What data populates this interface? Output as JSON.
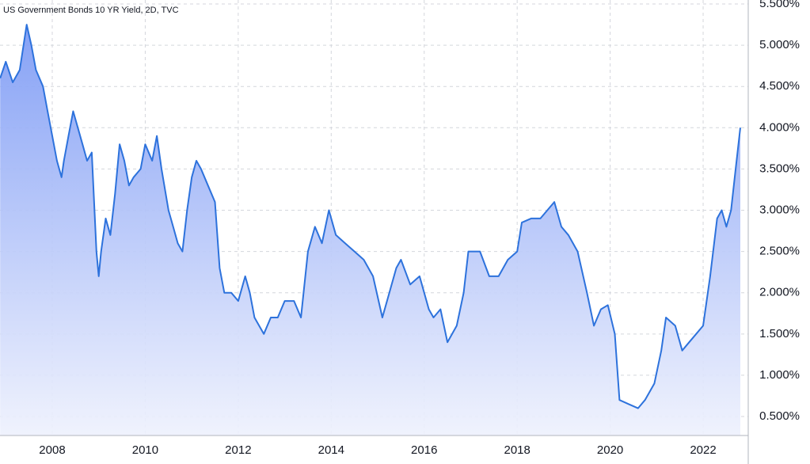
{
  "chart_data": {
    "type": "area",
    "title": "US Government Bonds 10 YR Yield, 2D, TVC",
    "color": "#2d72dc",
    "x": [
      2006.88,
      2007.0,
      2007.15,
      2007.3,
      2007.45,
      2007.55,
      2007.65,
      2007.8,
      2007.9,
      2008.0,
      2008.1,
      2008.2,
      2008.25,
      2008.35,
      2008.45,
      2008.55,
      2008.65,
      2008.75,
      2008.85,
      2008.95,
      2009.0,
      2009.05,
      2009.15,
      2009.25,
      2009.35,
      2009.45,
      2009.55,
      2009.65,
      2009.75,
      2009.9,
      2010.0,
      2010.15,
      2010.25,
      2010.35,
      2010.5,
      2010.6,
      2010.7,
      2010.8,
      2010.9,
      2011.0,
      2011.1,
      2011.2,
      2011.35,
      2011.5,
      2011.6,
      2011.7,
      2011.85,
      2012.0,
      2012.15,
      2012.25,
      2012.35,
      2012.55,
      2012.7,
      2012.85,
      2013.0,
      2013.2,
      2013.35,
      2013.5,
      2013.65,
      2013.8,
      2013.95,
      2014.1,
      2014.3,
      2014.5,
      2014.7,
      2014.9,
      2015.1,
      2015.2,
      2015.4,
      2015.5,
      2015.7,
      2015.9,
      2016.1,
      2016.2,
      2016.35,
      2016.5,
      2016.7,
      2016.85,
      2016.95,
      2017.2,
      2017.4,
      2017.6,
      2017.8,
      2018.0,
      2018.1,
      2018.3,
      2018.5,
      2018.8,
      2018.95,
      2019.1,
      2019.3,
      2019.5,
      2019.65,
      2019.8,
      2019.95,
      2020.1,
      2020.2,
      2020.4,
      2020.6,
      2020.75,
      2020.95,
      2021.1,
      2021.2,
      2021.4,
      2021.55,
      2021.7,
      2021.85,
      2022.0,
      2022.15,
      2022.3,
      2022.4,
      2022.5,
      2022.6,
      2022.7,
      2022.8
    ],
    "values": [
      4.6,
      4.8,
      4.55,
      4.7,
      5.25,
      5.0,
      4.7,
      4.5,
      4.2,
      3.9,
      3.6,
      3.4,
      3.6,
      3.9,
      4.2,
      4.0,
      3.8,
      3.6,
      3.7,
      2.5,
      2.2,
      2.5,
      2.9,
      2.7,
      3.2,
      3.8,
      3.6,
      3.3,
      3.4,
      3.5,
      3.8,
      3.6,
      3.9,
      3.5,
      3.0,
      2.8,
      2.6,
      2.5,
      3.0,
      3.4,
      3.6,
      3.5,
      3.3,
      3.1,
      2.3,
      2.0,
      2.0,
      1.9,
      2.2,
      2.0,
      1.7,
      1.5,
      1.7,
      1.7,
      1.9,
      1.9,
      1.7,
      2.5,
      2.8,
      2.6,
      3.0,
      2.7,
      2.6,
      2.5,
      2.4,
      2.2,
      1.7,
      1.9,
      2.3,
      2.4,
      2.1,
      2.2,
      1.8,
      1.7,
      1.8,
      1.4,
      1.6,
      2.0,
      2.5,
      2.5,
      2.2,
      2.2,
      2.4,
      2.5,
      2.85,
      2.9,
      2.9,
      3.1,
      2.8,
      2.7,
      2.5,
      2.0,
      1.6,
      1.8,
      1.85,
      1.5,
      0.7,
      0.65,
      0.6,
      0.7,
      0.9,
      1.3,
      1.7,
      1.6,
      1.3,
      1.4,
      1.5,
      1.6,
      2.2,
      2.9,
      3.0,
      2.8,
      3.0,
      3.5,
      4.0
    ],
    "xlim": [
      2006.876,
      2022.97
    ],
    "xticks": [
      2008,
      2010,
      2012,
      2014,
      2016,
      2018,
      2020,
      2022
    ],
    "ylim": [
      0.27,
      5.548
    ],
    "yticks": [
      {
        "value": 0.5,
        "label": "0.500%"
      },
      {
        "value": 1.0,
        "label": "1.000%"
      },
      {
        "value": 1.5,
        "label": "1.500%"
      },
      {
        "value": 2.0,
        "label": "2.000%"
      },
      {
        "value": 2.5,
        "label": "2.500%"
      },
      {
        "value": 3.0,
        "label": "3.000%"
      },
      {
        "value": 3.5,
        "label": "3.500%"
      },
      {
        "value": 4.0,
        "label": "4.000%"
      },
      {
        "value": 4.5,
        "label": "4.500%"
      },
      {
        "value": 5.0,
        "label": "5.000%"
      },
      {
        "value": 5.5,
        "label": "5.500%"
      }
    ],
    "grid": true
  }
}
